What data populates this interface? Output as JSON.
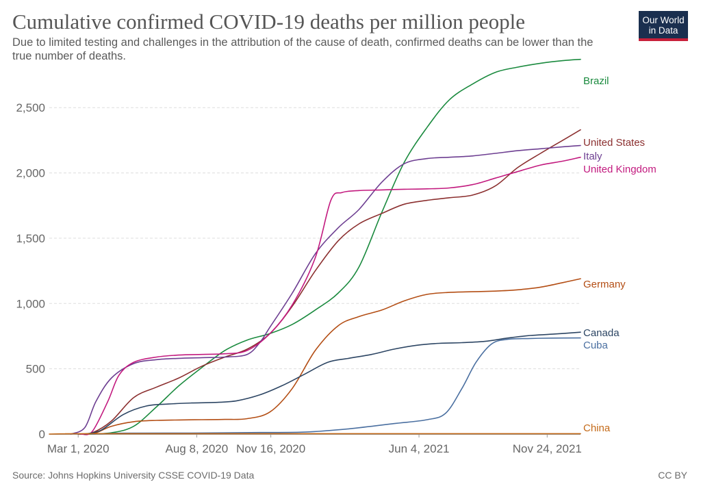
{
  "title": "Cumulative confirmed COVID-19 deaths per million people",
  "subtitle": "Due to limited testing and challenges in the attribution of the cause of death, confirmed deaths can be lower than the true number of deaths.",
  "logo": {
    "line1": "Our World",
    "line2": "in Data"
  },
  "source": "Source: Johns Hopkins University CSSE COVID-19 Data",
  "license": "CC BY",
  "chart_data": {
    "type": "line",
    "title": "Cumulative confirmed COVID-19 deaths per million people",
    "x_axis": {
      "min": "2020-01-22",
      "max": "2022-01-08",
      "ticks": [
        {
          "date": "2020-03-01",
          "label": "Mar 1, 2020"
        },
        {
          "date": "2020-08-08",
          "label": "Aug 8, 2020"
        },
        {
          "date": "2020-11-16",
          "label": "Nov 16, 2020"
        },
        {
          "date": "2021-06-04",
          "label": "Jun 4, 2021"
        },
        {
          "date": "2021-11-24",
          "label": "Nov 24, 2021"
        }
      ]
    },
    "y_axis": {
      "min": 0,
      "max": 2800,
      "ticks": [
        {
          "value": 0,
          "label": "0"
        },
        {
          "value": 500,
          "label": "500"
        },
        {
          "value": 1000,
          "label": "1,000"
        },
        {
          "value": 1500,
          "label": "1,500"
        },
        {
          "value": 2000,
          "label": "2,000"
        },
        {
          "value": 2500,
          "label": "2,500"
        }
      ]
    },
    "grid": true,
    "series": [
      {
        "name": "Brazil",
        "color": "#1a8a3e",
        "points": [
          [
            "2020-03-15",
            0
          ],
          [
            "2020-04-15",
            10
          ],
          [
            "2020-05-15",
            60
          ],
          [
            "2020-06-15",
            210
          ],
          [
            "2020-07-15",
            370
          ],
          [
            "2020-08-15",
            510
          ],
          [
            "2020-09-15",
            640
          ],
          [
            "2020-10-15",
            720
          ],
          [
            "2020-11-15",
            770
          ],
          [
            "2020-12-15",
            840
          ],
          [
            "2021-01-15",
            950
          ],
          [
            "2021-02-15",
            1080
          ],
          [
            "2021-03-15",
            1280
          ],
          [
            "2021-04-15",
            1700
          ],
          [
            "2021-05-15",
            2080
          ],
          [
            "2021-06-15",
            2350
          ],
          [
            "2021-07-15",
            2560
          ],
          [
            "2021-08-15",
            2680
          ],
          [
            "2021-09-15",
            2770
          ],
          [
            "2021-10-15",
            2810
          ],
          [
            "2021-11-15",
            2840
          ],
          [
            "2021-12-15",
            2860
          ],
          [
            "2022-01-08",
            2870
          ]
        ]
      },
      {
        "name": "United States",
        "color": "#8b2f2f",
        "points": [
          [
            "2020-03-01",
            0
          ],
          [
            "2020-03-20",
            10
          ],
          [
            "2020-04-15",
            100
          ],
          [
            "2020-05-15",
            280
          ],
          [
            "2020-06-15",
            360
          ],
          [
            "2020-07-15",
            430
          ],
          [
            "2020-08-15",
            520
          ],
          [
            "2020-09-15",
            590
          ],
          [
            "2020-10-15",
            650
          ],
          [
            "2020-11-15",
            770
          ],
          [
            "2020-12-15",
            980
          ],
          [
            "2021-01-15",
            1250
          ],
          [
            "2021-02-15",
            1480
          ],
          [
            "2021-03-15",
            1610
          ],
          [
            "2021-04-15",
            1690
          ],
          [
            "2021-05-15",
            1760
          ],
          [
            "2021-06-15",
            1790
          ],
          [
            "2021-07-15",
            1810
          ],
          [
            "2021-08-15",
            1830
          ],
          [
            "2021-09-15",
            1900
          ],
          [
            "2021-10-15",
            2040
          ],
          [
            "2021-11-15",
            2150
          ],
          [
            "2021-12-15",
            2250
          ],
          [
            "2022-01-08",
            2330
          ]
        ]
      },
      {
        "name": "Italy",
        "color": "#6d3e91",
        "points": [
          [
            "2020-02-20",
            0
          ],
          [
            "2020-03-10",
            50
          ],
          [
            "2020-03-25",
            250
          ],
          [
            "2020-04-15",
            430
          ],
          [
            "2020-05-15",
            540
          ],
          [
            "2020-06-15",
            570
          ],
          [
            "2020-07-15",
            580
          ],
          [
            "2020-08-15",
            585
          ],
          [
            "2020-09-15",
            590
          ],
          [
            "2020-10-15",
            610
          ],
          [
            "2020-11-01",
            700
          ],
          [
            "2020-11-15",
            820
          ],
          [
            "2020-12-15",
            1080
          ],
          [
            "2021-01-15",
            1380
          ],
          [
            "2021-02-15",
            1580
          ],
          [
            "2021-03-15",
            1720
          ],
          [
            "2021-04-15",
            1930
          ],
          [
            "2021-05-15",
            2070
          ],
          [
            "2021-06-15",
            2110
          ],
          [
            "2021-07-15",
            2120
          ],
          [
            "2021-08-15",
            2130
          ],
          [
            "2021-09-15",
            2150
          ],
          [
            "2021-10-15",
            2170
          ],
          [
            "2021-11-15",
            2185
          ],
          [
            "2021-12-15",
            2200
          ],
          [
            "2022-01-08",
            2210
          ]
        ]
      },
      {
        "name": "United Kingdom",
        "color": "#c2197e",
        "points": [
          [
            "2020-03-05",
            0
          ],
          [
            "2020-03-20",
            20
          ],
          [
            "2020-04-10",
            250
          ],
          [
            "2020-04-25",
            450
          ],
          [
            "2020-05-15",
            550
          ],
          [
            "2020-06-15",
            590
          ],
          [
            "2020-07-15",
            605
          ],
          [
            "2020-08-15",
            610
          ],
          [
            "2020-09-15",
            615
          ],
          [
            "2020-10-15",
            640
          ],
          [
            "2020-11-15",
            770
          ],
          [
            "2020-12-15",
            990
          ],
          [
            "2021-01-15",
            1350
          ],
          [
            "2021-02-05",
            1790
          ],
          [
            "2021-02-20",
            1850
          ],
          [
            "2021-03-15",
            1865
          ],
          [
            "2021-04-15",
            1870
          ],
          [
            "2021-05-15",
            1875
          ],
          [
            "2021-06-15",
            1878
          ],
          [
            "2021-07-15",
            1885
          ],
          [
            "2021-08-15",
            1910
          ],
          [
            "2021-09-15",
            1960
          ],
          [
            "2021-10-15",
            2010
          ],
          [
            "2021-11-15",
            2060
          ],
          [
            "2021-12-15",
            2090
          ],
          [
            "2022-01-08",
            2120
          ]
        ]
      },
      {
        "name": "Germany",
        "color": "#b34d13",
        "points": [
          [
            "2020-03-10",
            0
          ],
          [
            "2020-03-25",
            10
          ],
          [
            "2020-04-15",
            60
          ],
          [
            "2020-05-15",
            95
          ],
          [
            "2020-06-15",
            105
          ],
          [
            "2020-07-15",
            108
          ],
          [
            "2020-08-15",
            110
          ],
          [
            "2020-09-15",
            112
          ],
          [
            "2020-10-15",
            118
          ],
          [
            "2020-11-15",
            170
          ],
          [
            "2020-12-15",
            350
          ],
          [
            "2021-01-15",
            640
          ],
          [
            "2021-02-15",
            830
          ],
          [
            "2021-03-15",
            900
          ],
          [
            "2021-04-15",
            950
          ],
          [
            "2021-05-15",
            1020
          ],
          [
            "2021-06-15",
            1070
          ],
          [
            "2021-07-15",
            1085
          ],
          [
            "2021-08-15",
            1090
          ],
          [
            "2021-09-15",
            1095
          ],
          [
            "2021-10-15",
            1105
          ],
          [
            "2021-11-15",
            1125
          ],
          [
            "2021-12-15",
            1160
          ],
          [
            "2022-01-08",
            1190
          ]
        ]
      },
      {
        "name": "Canada",
        "color": "#2c4563",
        "points": [
          [
            "2020-03-10",
            0
          ],
          [
            "2020-04-01",
            30
          ],
          [
            "2020-05-01",
            150
          ],
          [
            "2020-06-01",
            215
          ],
          [
            "2020-07-01",
            230
          ],
          [
            "2020-08-01",
            238
          ],
          [
            "2020-09-01",
            242
          ],
          [
            "2020-10-01",
            255
          ],
          [
            "2020-11-01",
            300
          ],
          [
            "2020-12-01",
            370
          ],
          [
            "2021-01-01",
            460
          ],
          [
            "2021-02-01",
            550
          ],
          [
            "2021-03-01",
            580
          ],
          [
            "2021-04-01",
            610
          ],
          [
            "2021-05-01",
            650
          ],
          [
            "2021-06-01",
            680
          ],
          [
            "2021-07-01",
            695
          ],
          [
            "2021-08-01",
            700
          ],
          [
            "2021-09-01",
            710
          ],
          [
            "2021-10-01",
            735
          ],
          [
            "2021-11-01",
            755
          ],
          [
            "2021-12-01",
            765
          ],
          [
            "2022-01-08",
            780
          ]
        ]
      },
      {
        "name": "Cuba",
        "color": "#4a6fa0",
        "points": [
          [
            "2020-03-20",
            0
          ],
          [
            "2020-05-01",
            7
          ],
          [
            "2020-08-01",
            8
          ],
          [
            "2020-11-01",
            12
          ],
          [
            "2021-01-01",
            15
          ],
          [
            "2021-03-01",
            40
          ],
          [
            "2021-05-01",
            80
          ],
          [
            "2021-06-15",
            110
          ],
          [
            "2021-07-10",
            160
          ],
          [
            "2021-08-01",
            350
          ],
          [
            "2021-08-20",
            550
          ],
          [
            "2021-09-10",
            690
          ],
          [
            "2021-10-01",
            725
          ],
          [
            "2021-11-01",
            732
          ],
          [
            "2021-12-01",
            735
          ],
          [
            "2022-01-08",
            736
          ]
        ]
      },
      {
        "name": "China",
        "color": "#c46a19",
        "points": [
          [
            "2020-01-22",
            0
          ],
          [
            "2020-02-20",
            2
          ],
          [
            "2020-04-20",
            3
          ],
          [
            "2022-01-08",
            3
          ]
        ]
      }
    ]
  }
}
